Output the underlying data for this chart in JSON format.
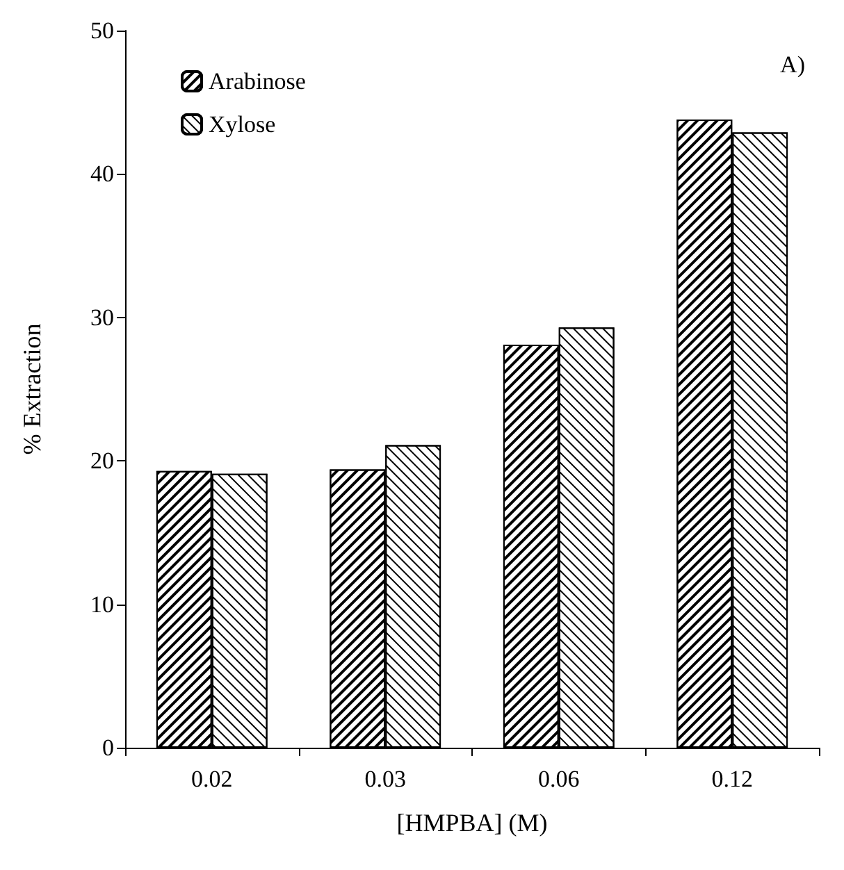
{
  "chart_data": {
    "type": "bar",
    "xlabel": "[HMPBA] (M)",
    "ylabel": "% Extraction",
    "annotations": [
      "A)"
    ],
    "categories": [
      "0.02",
      "0.03",
      "0.06",
      "0.12"
    ],
    "series": [
      {
        "name": "Arabinose",
        "color": "#ffffff",
        "values": [
          19.3,
          19.4,
          28.1,
          43.8
        ]
      },
      {
        "name": "Xylose",
        "color": "#ffffff",
        "values": [
          19.1,
          21.1,
          29.3,
          42.9
        ]
      }
    ],
    "ylim": [
      0,
      50
    ],
    "yticks": [
      0,
      10,
      20,
      30,
      40,
      50
    ],
    "grid": false,
    "legend": "top left"
  }
}
